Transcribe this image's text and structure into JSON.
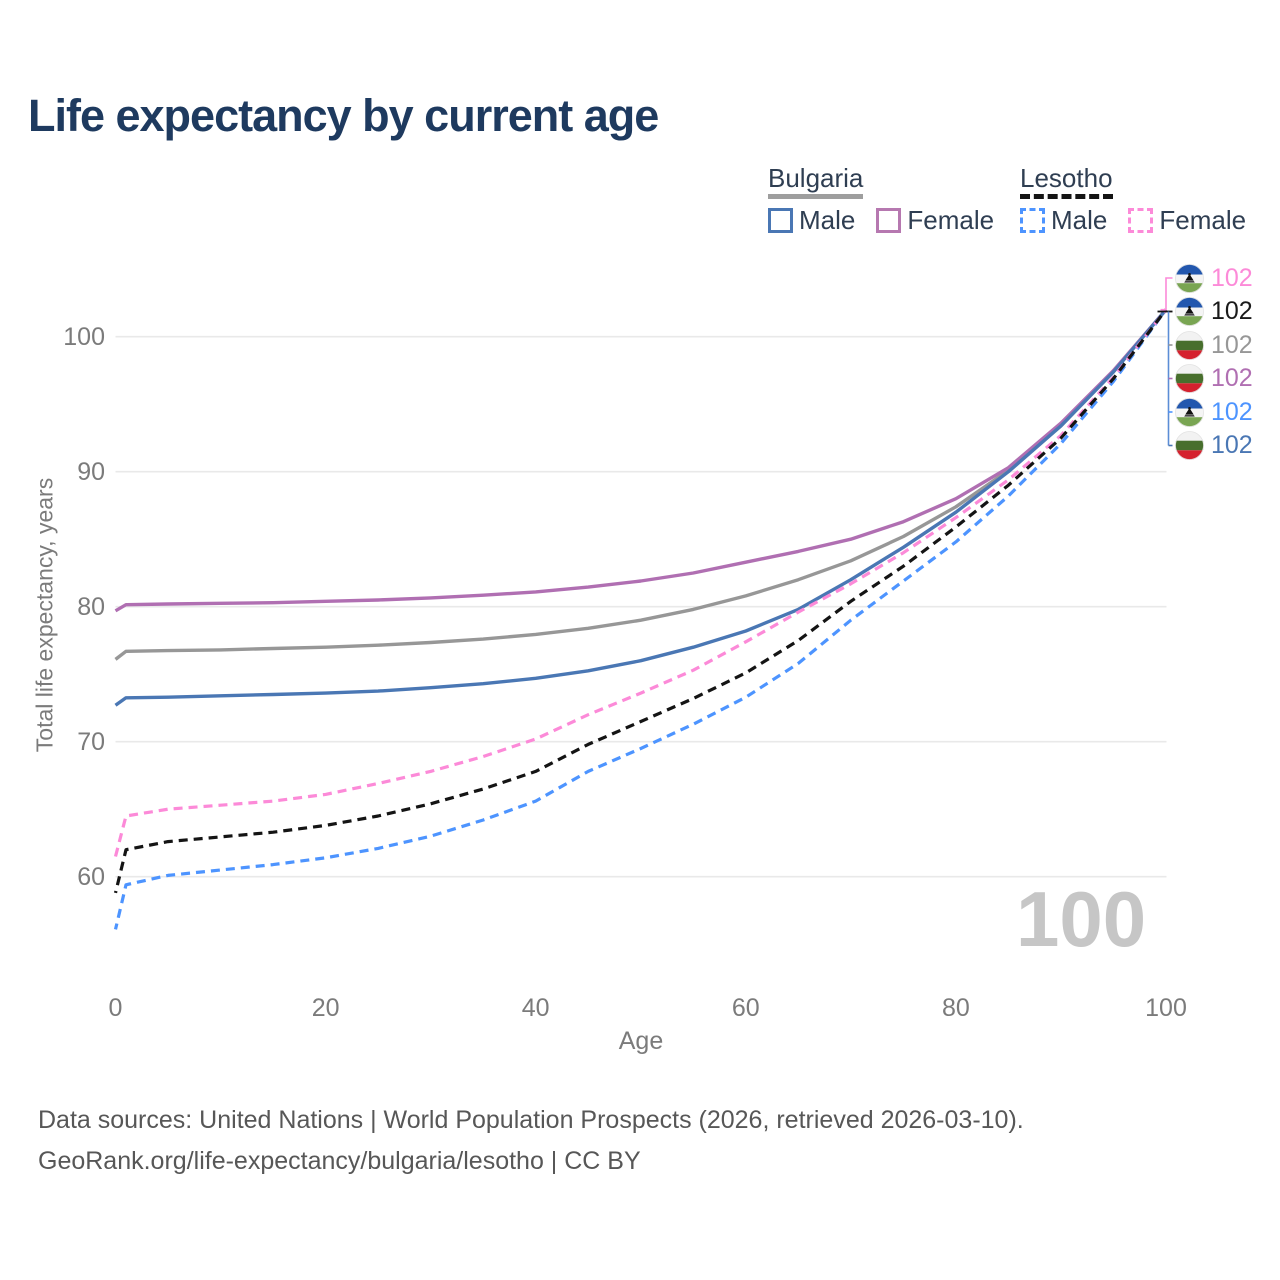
{
  "title": "Life expectancy by current age",
  "watermark_age": "100",
  "footer": {
    "line1": "Data sources: United Nations | World Population Prospects (2026, retrieved 2026-03-10).",
    "line2": "GeoRank.org/life-expectancy/bulgaria/lesotho | CC BY"
  },
  "legend": {
    "groups": [
      {
        "name": "Bulgaria",
        "line_style": "solid",
        "underline_color": "#9e9e9e",
        "items": [
          {
            "label": "Male",
            "color": "#4a77b4",
            "dashed": false
          },
          {
            "label": "Female",
            "color": "#b678b0",
            "dashed": false
          }
        ]
      },
      {
        "name": "Lesotho",
        "line_style": "dashed",
        "underline_color": "#141414",
        "items": [
          {
            "label": "Male",
            "color": "#4d94ff",
            "dashed": true
          },
          {
            "label": "Female",
            "color": "#fc8ad8",
            "dashed": true
          }
        ]
      }
    ]
  },
  "chart_data": {
    "type": "line",
    "title": "Life expectancy by current age",
    "xlabel": "Age",
    "ylabel": "Total life expectancy, years",
    "xlim": [
      0,
      100
    ],
    "ylim": [
      55.5,
      103.5
    ],
    "x_ticks": [
      0,
      20,
      40,
      60,
      80,
      100
    ],
    "y_ticks": [
      60,
      70,
      80,
      90,
      100
    ],
    "grid": "horizontal",
    "legend_position": "top-right",
    "x": [
      0,
      1,
      5,
      10,
      15,
      20,
      25,
      30,
      35,
      40,
      45,
      50,
      55,
      60,
      65,
      70,
      75,
      80,
      85,
      90,
      95,
      100
    ],
    "series": [
      {
        "name": "Bulgaria Total",
        "country": "Bulgaria",
        "sex": "Total",
        "color": "#979797",
        "dashed": false,
        "flag": "bulgaria",
        "end_label": "102",
        "values": [
          76.1,
          76.7,
          76.75,
          76.8,
          76.9,
          77.0,
          77.15,
          77.35,
          77.6,
          77.95,
          78.4,
          79.0,
          79.8,
          80.8,
          82.0,
          83.4,
          85.2,
          87.4,
          90.1,
          93.4,
          97.4,
          102
        ]
      },
      {
        "name": "Bulgaria Female",
        "country": "Bulgaria",
        "sex": "Female",
        "color": "#b06fb2",
        "dashed": false,
        "flag": "bulgaria",
        "end_label": "102",
        "values": [
          79.7,
          80.15,
          80.2,
          80.25,
          80.3,
          80.4,
          80.5,
          80.65,
          80.85,
          81.1,
          81.45,
          81.9,
          82.5,
          83.3,
          84.1,
          85.0,
          86.3,
          88.0,
          90.3,
          93.6,
          97.5,
          102
        ]
      },
      {
        "name": "Bulgaria Male",
        "country": "Bulgaria",
        "sex": "Male",
        "color": "#4a77b4",
        "dashed": false,
        "flag": "bulgaria",
        "end_label": "102",
        "values": [
          72.7,
          73.25,
          73.3,
          73.4,
          73.5,
          73.6,
          73.75,
          74.0,
          74.3,
          74.7,
          75.25,
          76.0,
          77.0,
          78.2,
          79.8,
          82.0,
          84.4,
          87.0,
          90.0,
          93.4,
          97.4,
          102
        ]
      },
      {
        "name": "Lesotho Male",
        "country": "Lesotho",
        "sex": "Male",
        "color": "#4d94ff",
        "dashed": true,
        "flag": "lesotho",
        "end_label": "102",
        "values": [
          56.1,
          59.4,
          60.1,
          60.5,
          60.9,
          61.4,
          62.1,
          63.0,
          64.2,
          65.6,
          67.8,
          69.5,
          71.3,
          73.3,
          75.8,
          79.0,
          81.9,
          84.8,
          88.2,
          92.1,
          96.7,
          102
        ]
      },
      {
        "name": "Lesotho Female",
        "country": "Lesotho",
        "sex": "Female",
        "color": "#fc8ad8",
        "dashed": true,
        "flag": "lesotho",
        "end_label": "102",
        "values": [
          61.5,
          64.5,
          65.0,
          65.3,
          65.6,
          66.1,
          66.9,
          67.8,
          68.9,
          70.2,
          72.0,
          73.6,
          75.3,
          77.4,
          79.6,
          81.7,
          84.0,
          86.6,
          89.4,
          92.7,
          97.0,
          102
        ]
      },
      {
        "name": "Lesotho Total",
        "country": "Lesotho",
        "sex": "Total",
        "color": "#141414",
        "dashed": true,
        "flag": "lesotho",
        "end_label": "102",
        "values": [
          58.8,
          62.0,
          62.6,
          62.95,
          63.3,
          63.8,
          64.5,
          65.4,
          66.5,
          67.8,
          69.8,
          71.5,
          73.2,
          75.1,
          77.5,
          80.4,
          83.0,
          85.9,
          89.0,
          92.5,
          96.9,
          102
        ]
      }
    ],
    "end_labels_order": [
      "Lesotho Female",
      "Lesotho Total",
      "Bulgaria Total",
      "Bulgaria Female",
      "Lesotho Male",
      "Bulgaria Male"
    ]
  }
}
